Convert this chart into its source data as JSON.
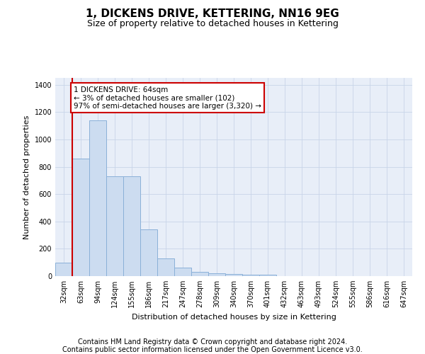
{
  "title": "1, DICKENS DRIVE, KETTERING, NN16 9EG",
  "subtitle": "Size of property relative to detached houses in Kettering",
  "xlabel": "Distribution of detached houses by size in Kettering",
  "ylabel": "Number of detached properties",
  "categories": [
    "32sqm",
    "63sqm",
    "94sqm",
    "124sqm",
    "155sqm",
    "186sqm",
    "217sqm",
    "247sqm",
    "278sqm",
    "309sqm",
    "340sqm",
    "370sqm",
    "401sqm",
    "432sqm",
    "463sqm",
    "493sqm",
    "524sqm",
    "555sqm",
    "586sqm",
    "616sqm",
    "647sqm"
  ],
  "values": [
    100,
    860,
    1140,
    730,
    730,
    340,
    130,
    60,
    30,
    22,
    18,
    10,
    12,
    0,
    0,
    0,
    0,
    0,
    0,
    0,
    0
  ],
  "bar_color": "#ccdcf0",
  "bar_edge_color": "#8ab0d8",
  "vline_color": "#cc0000",
  "annotation_text": "1 DICKENS DRIVE: 64sqm\n← 3% of detached houses are smaller (102)\n97% of semi-detached houses are larger (3,320) →",
  "annotation_box_color": "#ffffff",
  "annotation_box_edge_color": "#cc0000",
  "ylim": [
    0,
    1450
  ],
  "yticks": [
    0,
    200,
    400,
    600,
    800,
    1000,
    1200,
    1400
  ],
  "grid_color": "#c8d4e8",
  "background_color": "#e8eef8",
  "footer_line1": "Contains HM Land Registry data © Crown copyright and database right 2024.",
  "footer_line2": "Contains public sector information licensed under the Open Government Licence v3.0.",
  "title_fontsize": 11,
  "subtitle_fontsize": 9,
  "axis_fontsize": 8,
  "tick_fontsize": 7,
  "footer_fontsize": 7,
  "annotation_fontsize": 7.5
}
